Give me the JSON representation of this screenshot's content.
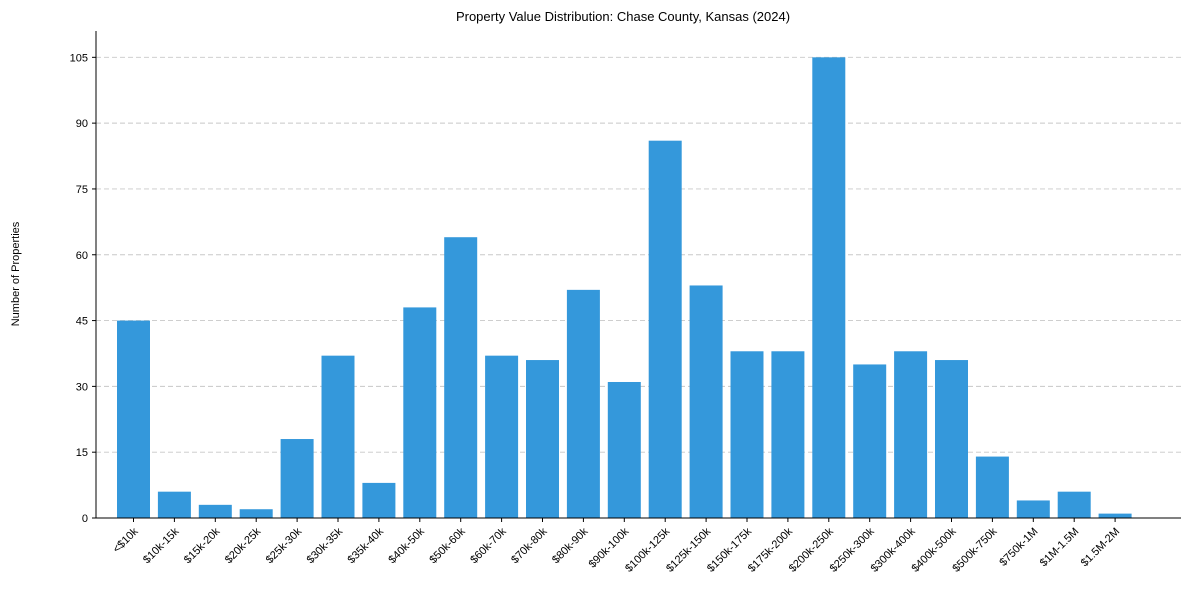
{
  "chart_data": {
    "type": "bar",
    "title": "Property Value Distribution: Chase County, Kansas (2024)",
    "xlabel": "",
    "ylabel": "Number of Properties",
    "ylim": [
      0,
      111
    ],
    "yticks": [
      0,
      15,
      30,
      45,
      60,
      75,
      90,
      105
    ],
    "grid": "y-dashed",
    "bar_color": "#3498db",
    "categories": [
      "<$10k",
      "$10k-15k",
      "$15k-20k",
      "$20k-25k",
      "$25k-30k",
      "$30k-35k",
      "$35k-40k",
      "$40k-50k",
      "$50k-60k",
      "$60k-70k",
      "$70k-80k",
      "$80k-90k",
      "$90k-100k",
      "$100k-125k",
      "$125k-150k",
      "$150k-175k",
      "$175k-200k",
      "$200k-250k",
      "$250k-300k",
      "$300k-400k",
      "$400k-500k",
      "$500k-750k",
      "$750k-1M",
      "$1M-1.5M",
      "$1.5M-2M"
    ],
    "values": [
      45,
      6,
      3,
      2,
      18,
      37,
      8,
      48,
      64,
      37,
      36,
      52,
      31,
      86,
      53,
      38,
      38,
      105,
      35,
      38,
      36,
      14,
      4,
      6,
      1
    ]
  }
}
